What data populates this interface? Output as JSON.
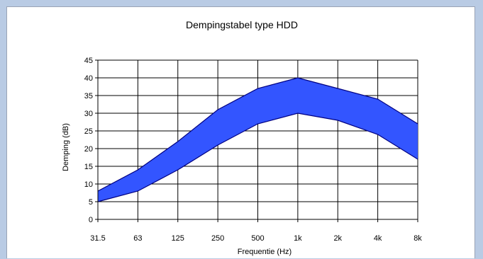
{
  "chart_data": {
    "type": "area",
    "title": "Dempingstabel type HDD",
    "xlabel": "Frequentie (Hz)",
    "ylabel": "Demping (dB)",
    "categories": [
      "31.5",
      "63",
      "125",
      "250",
      "500",
      "1k",
      "2k",
      "4k",
      "8k"
    ],
    "ylim": [
      0,
      45
    ],
    "yticks": [
      0,
      5,
      10,
      15,
      20,
      25,
      30,
      35,
      40,
      45
    ],
    "series": [
      {
        "role": "upper",
        "values": [
          8,
          14,
          22,
          31,
          37,
          40,
          37,
          34,
          27
        ]
      },
      {
        "role": "lower",
        "values": [
          5,
          8,
          14,
          21,
          27,
          30,
          28,
          24,
          17
        ]
      }
    ],
    "grid": true,
    "fill_color": "#3355ff",
    "stroke_color": "#000080"
  }
}
